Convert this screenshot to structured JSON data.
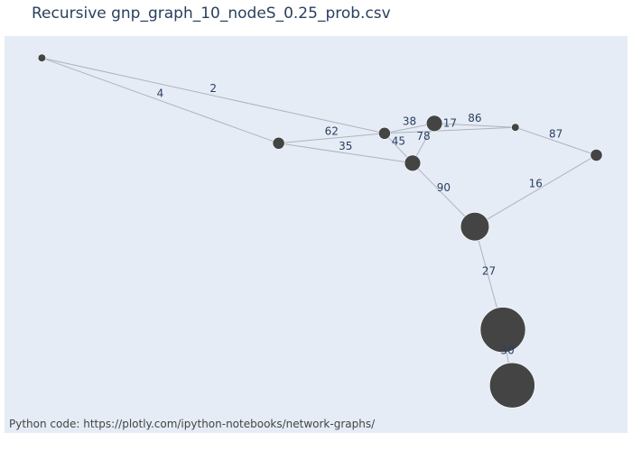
{
  "chart_data": {
    "type": "network",
    "title": "Recursive gnp_graph_10_nodeS_0.25_prob.csv",
    "footnote": "Python code:  https://plotly.com/ipython-notebooks/network-graphs/",
    "node_color": "#444444",
    "edge_color": "#aeb3bd",
    "background": "#e5ecf6",
    "nodes": [
      {
        "id": 0,
        "x": 0.06,
        "y": 0.945,
        "size": 1
      },
      {
        "id": 1,
        "x": 0.44,
        "y": 0.73,
        "size": 2
      },
      {
        "id": 2,
        "x": 0.61,
        "y": 0.755,
        "size": 2
      },
      {
        "id": 3,
        "x": 0.655,
        "y": 0.68,
        "size": 3
      },
      {
        "id": 4,
        "x": 0.69,
        "y": 0.78,
        "size": 3
      },
      {
        "id": 5,
        "x": 0.82,
        "y": 0.77,
        "size": 1
      },
      {
        "id": 6,
        "x": 0.95,
        "y": 0.7,
        "size": 2
      },
      {
        "id": 7,
        "x": 0.755,
        "y": 0.52,
        "size": 6
      },
      {
        "id": 8,
        "x": 0.8,
        "y": 0.26,
        "size": 10
      },
      {
        "id": 9,
        "x": 0.815,
        "y": 0.12,
        "size": 10
      }
    ],
    "edges": [
      {
        "source": 0,
        "target": 1,
        "label": "4"
      },
      {
        "source": 0,
        "target": 2,
        "label": "2"
      },
      {
        "source": 1,
        "target": 2,
        "label": "62"
      },
      {
        "source": 1,
        "target": 3,
        "label": "35"
      },
      {
        "source": 2,
        "target": 4,
        "label": "38"
      },
      {
        "source": 2,
        "target": 3,
        "label": "45"
      },
      {
        "source": 4,
        "target": 3,
        "label": "78"
      },
      {
        "source": 4,
        "target": 5,
        "label": "86"
      },
      {
        "source": 2,
        "target": 5,
        "label": "17"
      },
      {
        "source": 5,
        "target": 6,
        "label": "87"
      },
      {
        "source": 6,
        "target": 7,
        "label": "16"
      },
      {
        "source": 3,
        "target": 7,
        "label": "90"
      },
      {
        "source": 7,
        "target": 8,
        "label": "27"
      },
      {
        "source": 8,
        "target": 9,
        "label": "30"
      }
    ]
  }
}
